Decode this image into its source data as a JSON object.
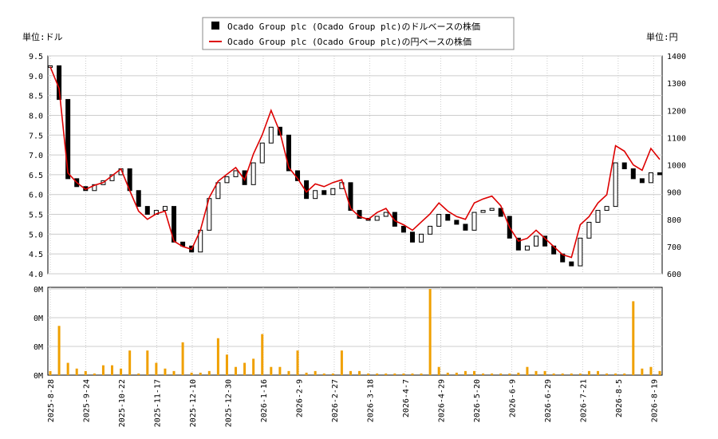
{
  "legend": {
    "usd_label": "Ocado Group plc (Ocado Group plc)のドルベースの株価",
    "jpy_label": "Ocado Group plc (Ocado Group plc)の円ベースの株価"
  },
  "axes": {
    "left_unit": "単位:ドル",
    "right_unit": "単位:円",
    "left_ticks": [
      "4.0",
      "4.5",
      "5.0",
      "5.5",
      "6.0",
      "6.5",
      "7.0",
      "7.5",
      "8.0",
      "8.5",
      "9.0",
      "9.5"
    ],
    "right_ticks": [
      "600",
      "700",
      "800",
      "900",
      "1000",
      "1100",
      "1200",
      "1300",
      "1400"
    ],
    "volume_ticks": [
      "0M",
      "0M",
      "0M",
      "0M"
    ],
    "date_ticks": [
      "2025-8-28",
      "2025-9-24",
      "2025-10-22",
      "2025-11-17",
      "2025-12-10",
      "2025-12-30",
      "2026-1-16",
      "2026-2-9",
      "2026-2-27",
      "2026-3-18",
      "2026-4-7",
      "2026-4-29",
      "2026-5-20",
      "2026-6-9",
      "2026-6-29",
      "2026-7-21",
      "2026-8-5",
      "2026-8-19"
    ]
  },
  "colors": {
    "jpy_line": "#dd0000",
    "volume_bar": "#f0a000",
    "candle": "#000000",
    "grid": "#cccccc"
  },
  "chart_data": {
    "type": "line",
    "x_ticks": [
      "2025-8-28",
      "2025-9-24",
      "2025-10-22",
      "2025-11-17",
      "2025-12-10",
      "2025-12-30",
      "2026-1-16",
      "2026-2-9",
      "2026-2-27",
      "2026-3-18",
      "2026-4-7",
      "2026-4-29",
      "2026-5-20",
      "2026-6-9",
      "2026-6-29",
      "2026-7-21",
      "2026-8-5",
      "2026-8-19"
    ],
    "usd_ylim": [
      4.0,
      9.5
    ],
    "jpy_ylim": [
      600,
      1400
    ],
    "usd_close": [
      9.25,
      8.4,
      6.4,
      6.2,
      6.1,
      6.25,
      6.35,
      6.5,
      6.65,
      6.1,
      5.7,
      5.5,
      5.6,
      5.7,
      4.8,
      4.7,
      4.55,
      5.1,
      5.9,
      6.3,
      6.45,
      6.6,
      6.25,
      6.8,
      7.3,
      7.7,
      7.5,
      6.6,
      6.35,
      5.9,
      6.1,
      6.0,
      6.15,
      6.3,
      5.6,
      5.4,
      5.35,
      5.45,
      5.55,
      5.2,
      5.05,
      4.8,
      5.0,
      5.2,
      5.5,
      5.35,
      5.25,
      5.1,
      5.55,
      5.6,
      5.65,
      5.45,
      4.9,
      4.6,
      4.7,
      4.95,
      4.7,
      4.5,
      4.3,
      4.2,
      4.9,
      5.3,
      5.6,
      5.7,
      6.8,
      6.65,
      6.4,
      6.3,
      6.55,
      6.5
    ],
    "jpy_close": [
      1360,
      1280,
      970,
      935,
      910,
      925,
      935,
      960,
      985,
      905,
      830,
      800,
      820,
      830,
      720,
      700,
      690,
      760,
      880,
      940,
      965,
      990,
      945,
      1040,
      1110,
      1200,
      1120,
      990,
      950,
      900,
      930,
      920,
      935,
      945,
      840,
      810,
      800,
      825,
      840,
      795,
      780,
      760,
      790,
      820,
      860,
      830,
      810,
      800,
      860,
      875,
      885,
      850,
      770,
      720,
      730,
      760,
      730,
      700,
      670,
      660,
      780,
      810,
      860,
      890,
      1070,
      1050,
      1000,
      980,
      1060,
      1020
    ],
    "volume": [
      0.05,
      0.6,
      0.15,
      0.08,
      0.05,
      0.02,
      0.12,
      0.12,
      0.08,
      0.3,
      0.02,
      0.3,
      0.15,
      0.08,
      0.05,
      0.4,
      0.03,
      0.03,
      0.05,
      0.45,
      0.25,
      0.1,
      0.15,
      0.2,
      0.5,
      0.1,
      0.1,
      0.05,
      0.3,
      0.03,
      0.05,
      0.02,
      0.02,
      0.3,
      0.05,
      0.05,
      0.02,
      0.02,
      0.02,
      0.02,
      0.02,
      0.02,
      0.02,
      1.05,
      0.1,
      0.03,
      0.03,
      0.05,
      0.05,
      0.02,
      0.02,
      0.02,
      0.02,
      0.03,
      0.1,
      0.05,
      0.05,
      0.02,
      0.02,
      0.02,
      0.02,
      0.05,
      0.05,
      0.02,
      0.02,
      0.02,
      0.9,
      0.08,
      0.1,
      0.05
    ]
  }
}
